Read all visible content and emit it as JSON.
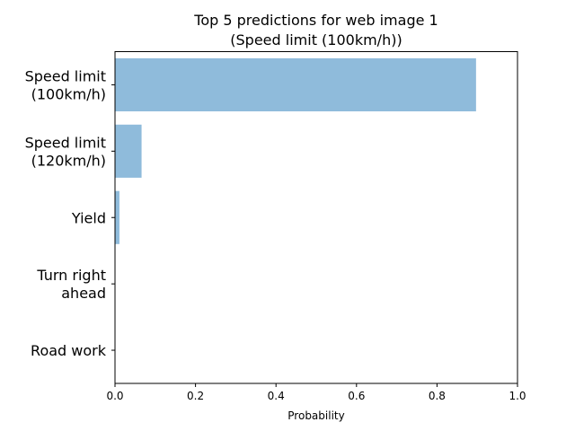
{
  "chart_data": {
    "type": "bar",
    "orientation": "horizontal",
    "title": [
      "Top 5 predictions for web image 1",
      "(Speed limit (100km/h))"
    ],
    "xlabel": "Probability",
    "ylabel": "",
    "xlim": [
      0,
      1.0
    ],
    "xticks": [
      "0.0",
      "0.2",
      "0.4",
      "0.6",
      "0.8",
      "1.0"
    ],
    "categories": [
      [
        "Speed limit",
        "(100km/h)"
      ],
      [
        "Speed limit",
        "(120km/h)"
      ],
      [
        "Yield"
      ],
      [
        "Turn right",
        "ahead"
      ],
      [
        "Road work"
      ]
    ],
    "values": [
      0.897,
      0.066,
      0.011,
      0.0008,
      0.0002
    ],
    "bar_color": "#8fbbdb",
    "grid": false,
    "legend": "none"
  }
}
